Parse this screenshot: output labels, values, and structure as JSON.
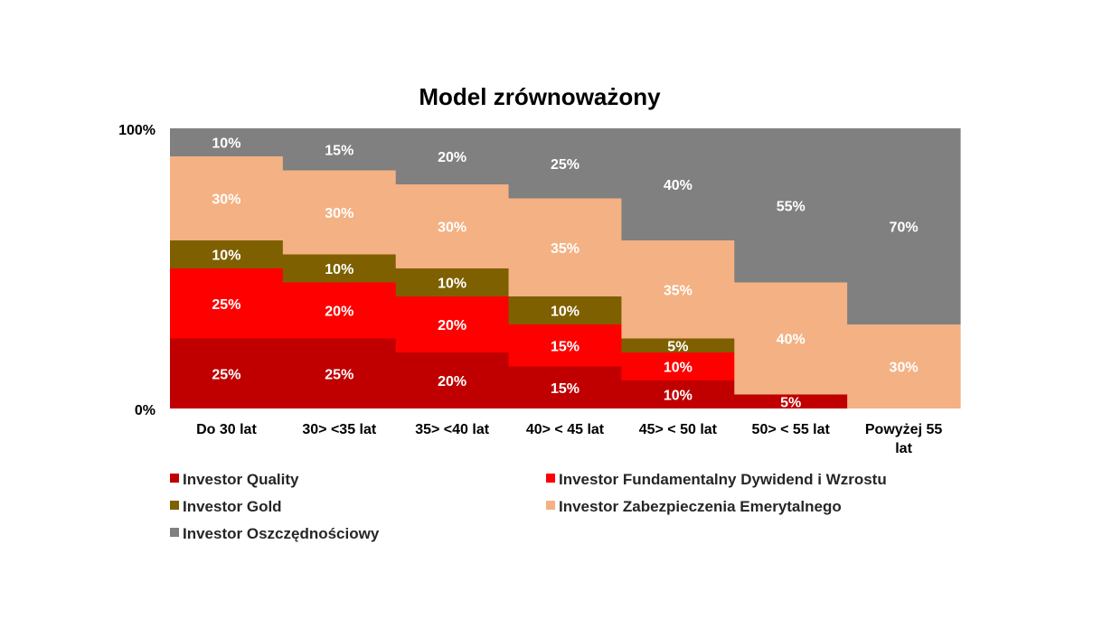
{
  "chart_data": {
    "type": "bar",
    "stacked": true,
    "title": "Model zrównoważony",
    "categories": [
      [
        "Do 30 lat"
      ],
      [
        "30> <35 lat"
      ],
      [
        "35>  <40 lat"
      ],
      [
        "40>  < 45 lat"
      ],
      [
        "45>  < 50 lat"
      ],
      [
        "50>  < 55 lat"
      ],
      [
        "Powyżej 55",
        "lat"
      ]
    ],
    "ylim": [
      0,
      100
    ],
    "yticks": [
      "0%",
      "100%"
    ],
    "series": [
      {
        "name": "Investor Quality",
        "color": "#C00000",
        "values": [
          25,
          25,
          20,
          15,
          10,
          5,
          0
        ],
        "labels": [
          "25%",
          "25%",
          "20%",
          "15%",
          "10%",
          "5%",
          ""
        ]
      },
      {
        "name": "Investor Fundamentalny Dywidend i Wzrostu",
        "color": "#FF0000",
        "values": [
          25,
          20,
          20,
          15,
          10,
          0,
          0
        ],
        "labels": [
          "25%",
          "20%",
          "20%",
          "15%",
          "10%",
          "",
          ""
        ]
      },
      {
        "name": "Investor Gold",
        "color": "#7F6000",
        "values": [
          10,
          10,
          10,
          10,
          5,
          0,
          0
        ],
        "labels": [
          "10%",
          "10%",
          "10%",
          "10%",
          "5%",
          "",
          ""
        ]
      },
      {
        "name": "Investor Zabezpieczenia Emerytalnego",
        "color": "#F4B183",
        "values": [
          30,
          30,
          30,
          35,
          35,
          40,
          30
        ],
        "labels": [
          "30%",
          "30%",
          "30%",
          "35%",
          "35%",
          "40%",
          "30%"
        ]
      },
      {
        "name": "Investor Oszczędnościowy",
        "color": "#808080",
        "values": [
          10,
          15,
          20,
          25,
          40,
          55,
          70
        ],
        "labels": [
          "10%",
          "15%",
          "20%",
          "25%",
          "40%",
          "55%",
          "70%"
        ]
      }
    ],
    "legend_position": "bottom",
    "grid": false
  }
}
